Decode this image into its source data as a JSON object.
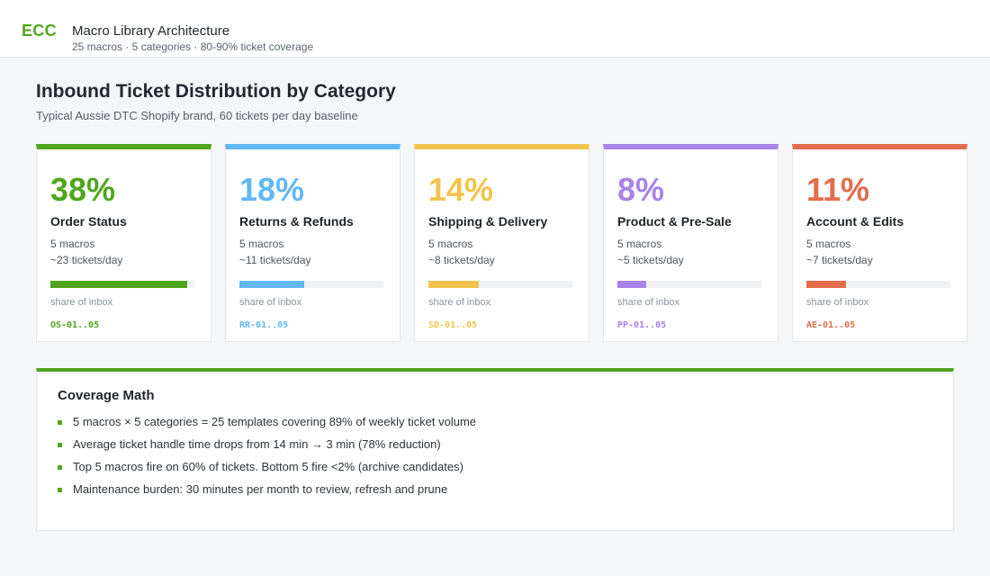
{
  "header": {
    "logo": "ECC",
    "title": "Macro Library Architecture",
    "subtitle": "25 macros · 5 categories · 80-90% ticket coverage"
  },
  "page": {
    "title": "Inbound Ticket Distribution by Category",
    "subtitle": "Typical Aussie DTC Shopify brand, 60 tickets per day baseline"
  },
  "categories": [
    {
      "pct": "38%",
      "name": "Order Status",
      "macros": "5 macros",
      "tickets": "~23 tickets/day",
      "share_label": "share of inbox",
      "share": 0.95,
      "code": "OS-01..05",
      "color": "#4fa61e"
    },
    {
      "pct": "18%",
      "name": "Returns & Refunds",
      "macros": "5 macros",
      "tickets": "~11 tickets/day",
      "share_label": "share of inbox",
      "share": 0.45,
      "code": "RR-01..05",
      "color": "#62b8f5"
    },
    {
      "pct": "14%",
      "name": "Shipping & Delivery",
      "macros": "5 macros",
      "tickets": "~8 tickets/day",
      "share_label": "share of inbox",
      "share": 0.35,
      "code": "SD-01..05",
      "color": "#f2c44d"
    },
    {
      "pct": "8%",
      "name": "Product & Pre-Sale",
      "macros": "5 macros",
      "tickets": "~5 tickets/day",
      "share_label": "share of inbox",
      "share": 0.2,
      "code": "PP-01..05",
      "color": "#a883ea"
    },
    {
      "pct": "11%",
      "name": "Account & Edits",
      "macros": "5 macros",
      "tickets": "~7 tickets/day",
      "share_label": "share of inbox",
      "share": 0.275,
      "code": "AE-01..05",
      "color": "#e36d4a"
    }
  ],
  "coverage": {
    "title": "Coverage Math",
    "items": [
      "5 macros × 5 categories = 25 templates covering 89% of weekly ticket volume",
      "Average ticket handle time drops from 14 min → 3 min (78% reduction)",
      "Top 5 macros fire on 60% of tickets. Bottom 5 fire <2% (archive candidates)",
      "Maintenance burden: 30 minutes per month to review, refresh and prune"
    ]
  }
}
